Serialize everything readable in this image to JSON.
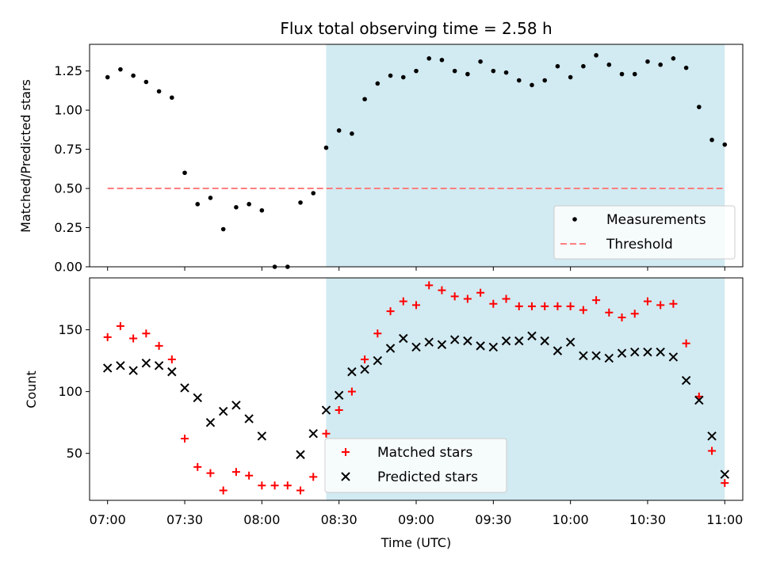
{
  "chart_data": [
    {
      "type": "scatter",
      "title": "Flux total observing time = 2.58 h",
      "xlabel": "",
      "ylabel": "Matched/Predicted stars",
      "xlim": [
        "06:53",
        "11:07"
      ],
      "ylim": [
        0,
        1.42
      ],
      "yticks": [
        "0.00",
        "0.25",
        "0.50",
        "0.75",
        "1.00",
        "1.25"
      ],
      "ytick_values": [
        0,
        0.25,
        0.5,
        0.75,
        1.0,
        1.25
      ],
      "shaded_span": [
        "08:25",
        "11:00"
      ],
      "shade_color": "#add8e6",
      "legend_position": "lower-right",
      "series": [
        {
          "name": "Measurements",
          "marker": "dot",
          "color": "#000000",
          "x": [
            "07:00",
            "07:05",
            "07:10",
            "07:15",
            "07:20",
            "07:25",
            "07:30",
            "07:35",
            "07:40",
            "07:45",
            "07:50",
            "07:55",
            "08:00",
            "08:05",
            "08:10",
            "08:15",
            "08:20",
            "08:25",
            "08:30",
            "08:35",
            "08:40",
            "08:45",
            "08:50",
            "08:55",
            "09:00",
            "09:05",
            "09:10",
            "09:15",
            "09:20",
            "09:25",
            "09:30",
            "09:35",
            "09:40",
            "09:45",
            "09:50",
            "09:55",
            "10:00",
            "10:05",
            "10:10",
            "10:15",
            "10:20",
            "10:25",
            "10:30",
            "10:35",
            "10:40",
            "10:45",
            "10:50",
            "10:55",
            "11:00"
          ],
          "y": [
            1.21,
            1.26,
            1.22,
            1.18,
            1.12,
            1.08,
            0.6,
            0.4,
            0.44,
            0.24,
            0.38,
            0.4,
            0.36,
            0.0,
            0.0,
            0.41,
            0.47,
            0.76,
            0.87,
            0.85,
            1.07,
            1.17,
            1.22,
            1.21,
            1.25,
            1.33,
            1.32,
            1.25,
            1.23,
            1.31,
            1.25,
            1.24,
            1.19,
            1.16,
            1.19,
            1.28,
            1.21,
            1.28,
            1.35,
            1.29,
            1.23,
            1.23,
            1.31,
            1.29,
            1.33,
            1.27,
            1.02,
            0.81,
            0.78
          ]
        },
        {
          "name": "Threshold",
          "marker": "dashed-line",
          "color": "#ff7f7f",
          "x": [
            "07:00",
            "11:00"
          ],
          "y": [
            0.5,
            0.5
          ]
        }
      ]
    },
    {
      "type": "scatter",
      "title": "",
      "xlabel": "Time (UTC)",
      "ylabel": "Count",
      "xlim": [
        "06:53",
        "11:07"
      ],
      "ylim": [
        12,
        192
      ],
      "yticks": [
        "50",
        "100",
        "150"
      ],
      "ytick_values": [
        50,
        100,
        150
      ],
      "xticks": [
        "07:00",
        "07:30",
        "08:00",
        "08:30",
        "09:00",
        "09:30",
        "10:00",
        "10:30",
        "11:00"
      ],
      "shaded_span": [
        "08:25",
        "11:00"
      ],
      "shade_color": "#add8e6",
      "legend_position": "lower-center",
      "series": [
        {
          "name": "Matched stars",
          "marker": "plus",
          "color": "#ff0000",
          "x": [
            "07:00",
            "07:05",
            "07:10",
            "07:15",
            "07:20",
            "07:25",
            "07:30",
            "07:35",
            "07:40",
            "07:45",
            "07:50",
            "07:55",
            "08:00",
            "08:05",
            "08:10",
            "08:15",
            "08:20",
            "08:25",
            "08:30",
            "08:35",
            "08:40",
            "08:45",
            "08:50",
            "08:55",
            "09:00",
            "09:05",
            "09:10",
            "09:15",
            "09:20",
            "09:25",
            "09:30",
            "09:35",
            "09:40",
            "09:45",
            "09:50",
            "09:55",
            "10:00",
            "10:05",
            "10:10",
            "10:15",
            "10:20",
            "10:25",
            "10:30",
            "10:35",
            "10:40",
            "10:45",
            "10:50",
            "10:55",
            "11:00"
          ],
          "y": [
            144,
            153,
            143,
            147,
            137,
            126,
            62,
            39,
            34,
            20,
            35,
            32,
            24,
            24,
            24,
            20,
            31,
            66,
            85,
            100,
            126,
            147,
            165,
            173,
            170,
            186,
            182,
            177,
            175,
            180,
            171,
            175,
            169,
            169,
            169,
            169,
            169,
            166,
            174,
            164,
            160,
            163,
            173,
            170,
            171,
            139,
            96,
            52,
            26
          ]
        },
        {
          "name": "Predicted stars",
          "marker": "x",
          "color": "#000000",
          "x": [
            "07:00",
            "07:05",
            "07:10",
            "07:15",
            "07:20",
            "07:25",
            "07:30",
            "07:35",
            "07:40",
            "07:45",
            "07:50",
            "07:55",
            "08:00",
            "08:15",
            "08:20",
            "08:25",
            "08:30",
            "08:35",
            "08:40",
            "08:45",
            "08:50",
            "08:55",
            "09:00",
            "09:05",
            "09:10",
            "09:15",
            "09:20",
            "09:25",
            "09:30",
            "09:35",
            "09:40",
            "09:45",
            "09:50",
            "09:55",
            "10:00",
            "10:05",
            "10:10",
            "10:15",
            "10:20",
            "10:25",
            "10:30",
            "10:35",
            "10:40",
            "10:45",
            "10:50",
            "10:55",
            "11:00"
          ],
          "y": [
            119,
            121,
            117,
            123,
            121,
            116,
            103,
            95,
            75,
            84,
            89,
            78,
            64,
            49,
            66,
            85,
            97,
            116,
            118,
            125,
            135,
            143,
            136,
            140,
            138,
            142,
            141,
            137,
            136,
            141,
            141,
            145,
            141,
            133,
            140,
            129,
            129,
            127,
            131,
            132,
            132,
            132,
            128,
            109,
            93,
            64,
            33
          ]
        }
      ]
    }
  ]
}
